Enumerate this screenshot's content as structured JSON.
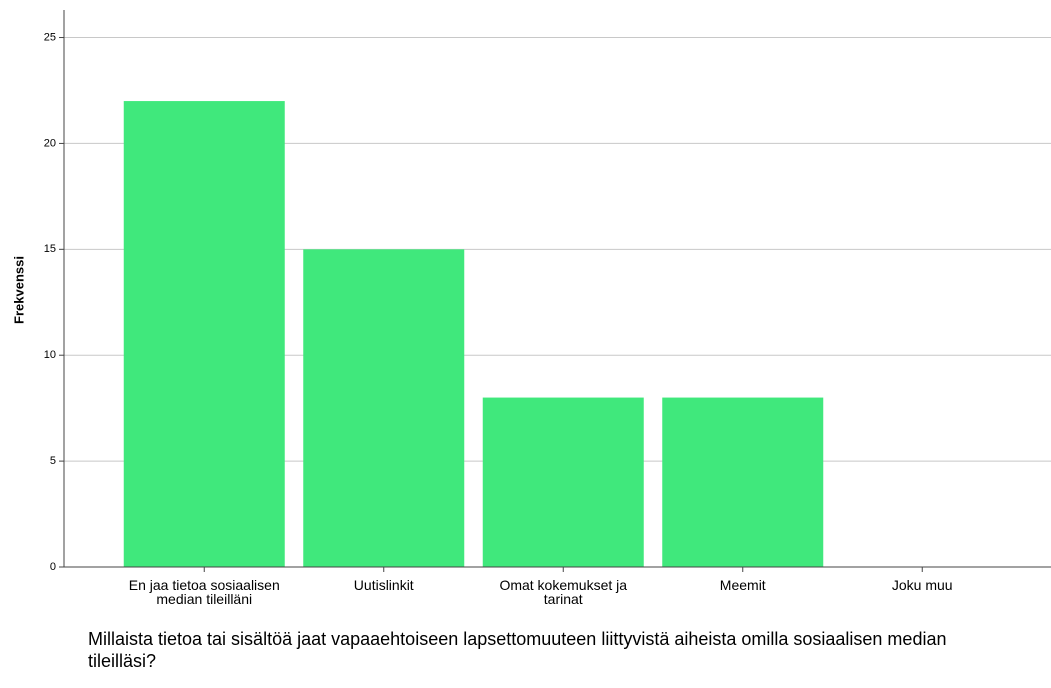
{
  "chart_data": {
    "type": "bar",
    "title": "Millaista tietoa tai sisältöä jaat vapaaehtoiseen lapsettomuuteen liittyvistä aiheista omilla sosiaalisen median tileilläsi?",
    "y_label": "Frekvenssi",
    "categories": [
      "En jaa tietoa sosiaalisen median tileilläni",
      "Uutislinkit",
      "Omat kokemukset ja tarinat",
      "Meemit",
      "Joku muu"
    ],
    "values": [
      22,
      15,
      8,
      8,
      0
    ],
    "color": "#40e87c",
    "ylim": [
      0,
      26.3
    ],
    "yticks": [
      0,
      5,
      10,
      15,
      20,
      25
    ],
    "grid": true
  }
}
